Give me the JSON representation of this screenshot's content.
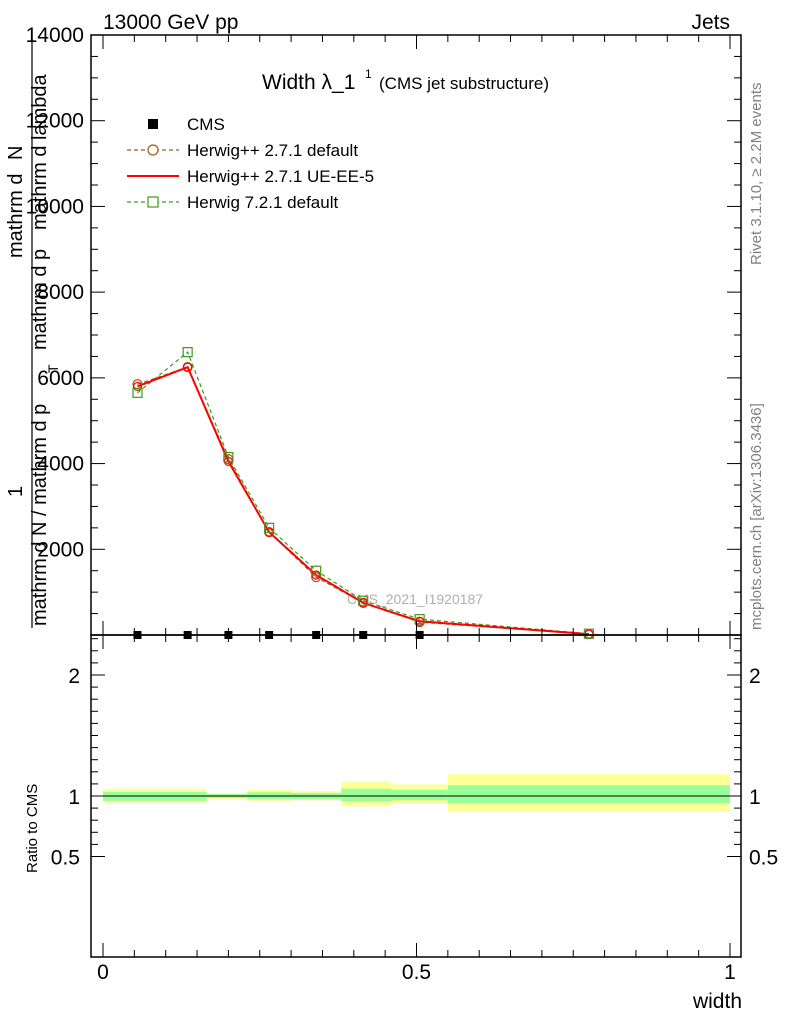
{
  "header": {
    "left": "13000 GeV pp",
    "right": "Jets"
  },
  "title": {
    "main": "Width λ_1",
    "superscript": "1",
    "suffix": "(CMS jet substructure)"
  },
  "side_labels": {
    "rivet": "Rivet 3.1.10, ≥ 2.2M events",
    "mcplots": "mcplots.cern.ch [arXiv:1306.3436]"
  },
  "watermark": "CMS_2021_I1920187",
  "ylabel": {
    "numerator_one": "1",
    "denominator_a": "mathrm d N / mathrm d p",
    "denominator_a_sub": "T",
    "denominator_b": "mathrm d p",
    "denominator_b_rest": "mathrm d lambda",
    "numerator_top": "mathrm d",
    "numerator_top_rest": "N",
    "combined_a": "mathrm d N / mathrm d p",
    "combined_sub": "T",
    "combined_b": "mathrm d p",
    "combined_c": "mathrm d lambda",
    "top_line": "mathrm d",
    "top_line2": "N"
  },
  "ratio_ylabel": "Ratio to CMS",
  "xlabel": "width",
  "chart_data": [
    {
      "type": "line",
      "panel": "main",
      "xlim": [
        0,
        1
      ],
      "ylim": [
        0,
        14000
      ],
      "y_ticks": [
        "2000",
        "4000",
        "6000",
        "8000",
        "10000",
        "12000",
        "14000"
      ],
      "x_ticks": [
        "0",
        "0.5",
        "1"
      ],
      "legend": [
        {
          "name": "CMS",
          "marker": "square-filled",
          "color": "#000000"
        },
        {
          "name": "Herwig++ 2.7.1 default",
          "marker": "circle-open",
          "line": "dashed",
          "color": "#a05a1e"
        },
        {
          "name": "Herwig++ 2.7.1 UE-EE-5",
          "marker": "none",
          "line": "solid",
          "color": "#ff0000"
        },
        {
          "name": "Herwig 7.2.1 default",
          "marker": "square-open",
          "line": "dashed",
          "color": "#3d9a1e"
        }
      ],
      "series": [
        {
          "name": "CMS",
          "x": [
            0.055,
            0.135,
            0.2,
            0.265,
            0.34,
            0.415,
            0.505
          ],
          "y": [
            0,
            0,
            0,
            0,
            0,
            0,
            0
          ]
        },
        {
          "name": "Herwig++ 2.7.1 default",
          "x": [
            0.055,
            0.135,
            0.2,
            0.265,
            0.34,
            0.415,
            0.505,
            0.775
          ],
          "y": [
            5850,
            6250,
            4100,
            2400,
            1350,
            750,
            300,
            20
          ]
        },
        {
          "name": "Herwig++ 2.7.1 UE-EE-5",
          "x": [
            0.055,
            0.135,
            0.2,
            0.265,
            0.34,
            0.415,
            0.505,
            0.775
          ],
          "y": [
            5800,
            6250,
            4050,
            2400,
            1400,
            750,
            320,
            20
          ]
        },
        {
          "name": "Herwig 7.2.1 default",
          "x": [
            0.055,
            0.135,
            0.2,
            0.265,
            0.34,
            0.415,
            0.505,
            0.775
          ],
          "y": [
            5650,
            6600,
            4150,
            2500,
            1500,
            800,
            370,
            30
          ]
        }
      ]
    },
    {
      "type": "area",
      "panel": "ratio",
      "xlim": [
        0,
        1
      ],
      "ylim": [
        0.4,
        2.4
      ],
      "y_ticks": [
        "0.5",
        "1",
        "2"
      ],
      "x_ticks": [
        "0",
        "0.5",
        "1"
      ],
      "bands": [
        {
          "x0": 0.0,
          "x1": 0.165,
          "outer": [
            0.945,
            1.06
          ],
          "inner": [
            0.96,
            1.035
          ]
        },
        {
          "x0": 0.165,
          "x1": 0.23,
          "outer": [
            0.975,
            1.025
          ],
          "inner": [
            0.985,
            1.015
          ]
        },
        {
          "x0": 0.23,
          "x1": 0.3,
          "outer": [
            0.96,
            1.05
          ],
          "inner": [
            0.975,
            1.03
          ]
        },
        {
          "x0": 0.3,
          "x1": 0.38,
          "outer": [
            0.965,
            1.04
          ],
          "inner": [
            0.975,
            1.025
          ]
        },
        {
          "x0": 0.38,
          "x1": 0.46,
          "outer": [
            0.915,
            1.12
          ],
          "inner": [
            0.955,
            1.06
          ]
        },
        {
          "x0": 0.46,
          "x1": 0.55,
          "outer": [
            0.935,
            1.095
          ],
          "inner": [
            0.965,
            1.05
          ]
        },
        {
          "x0": 0.55,
          "x1": 1.0,
          "outer": [
            0.87,
            1.18
          ],
          "inner": [
            0.94,
            1.09
          ]
        }
      ],
      "band_colors": {
        "outer": "#ffff99",
        "inner": "#99ff99"
      }
    }
  ]
}
